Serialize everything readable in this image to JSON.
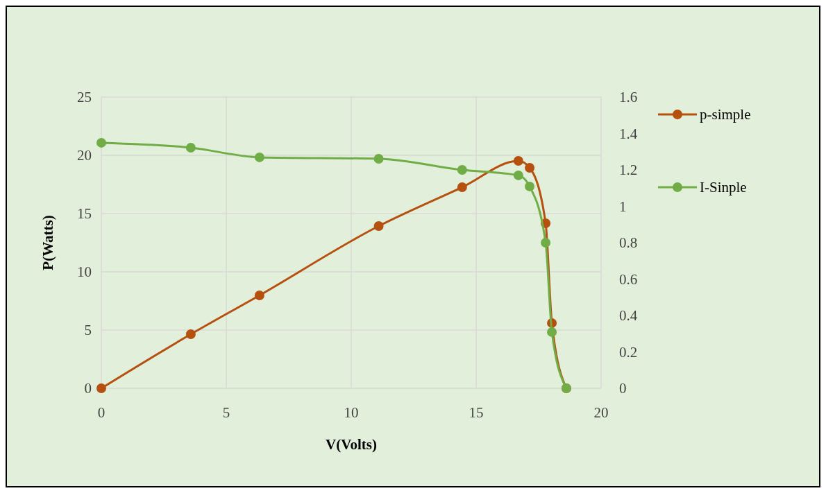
{
  "chart_data": {
    "type": "line",
    "xlabel": "V(Volts)",
    "ylabel": "P(Watts)",
    "xlim": [
      0,
      20
    ],
    "xticks": [
      0,
      5,
      10,
      15,
      20
    ],
    "ylim": [
      0,
      25
    ],
    "yticks": [
      0,
      5,
      10,
      15,
      20,
      25
    ],
    "y2lim": [
      0,
      1.6
    ],
    "y2ticks": [
      0,
      0.2,
      0.4,
      0.6,
      0.8,
      1,
      1.2,
      1.4,
      1.6
    ],
    "grid": true,
    "legend": "right",
    "marker": "circle",
    "series": [
      {
        "name": "p-simple",
        "color": "#b5500f",
        "x": [
          0,
          3.58,
          6.33,
          11.1,
          14.44,
          16.69,
          17.14,
          17.78,
          18.03,
          18.61
        ],
        "values": [
          0,
          4.64,
          7.98,
          13.93,
          17.26,
          19.52,
          18.93,
          14.17,
          5.6,
          0
        ]
      },
      {
        "name": "I-Sinple",
        "color": "#70ad47",
        "axis": "y2",
        "x": [
          0,
          3.58,
          6.33,
          11.1,
          14.44,
          16.69,
          17.14,
          17.78,
          18.03,
          18.61
        ],
        "values": [
          1.349,
          1.322,
          1.269,
          1.261,
          1.2,
          1.17,
          1.109,
          0.8,
          0.309,
          0
        ]
      }
    ]
  }
}
